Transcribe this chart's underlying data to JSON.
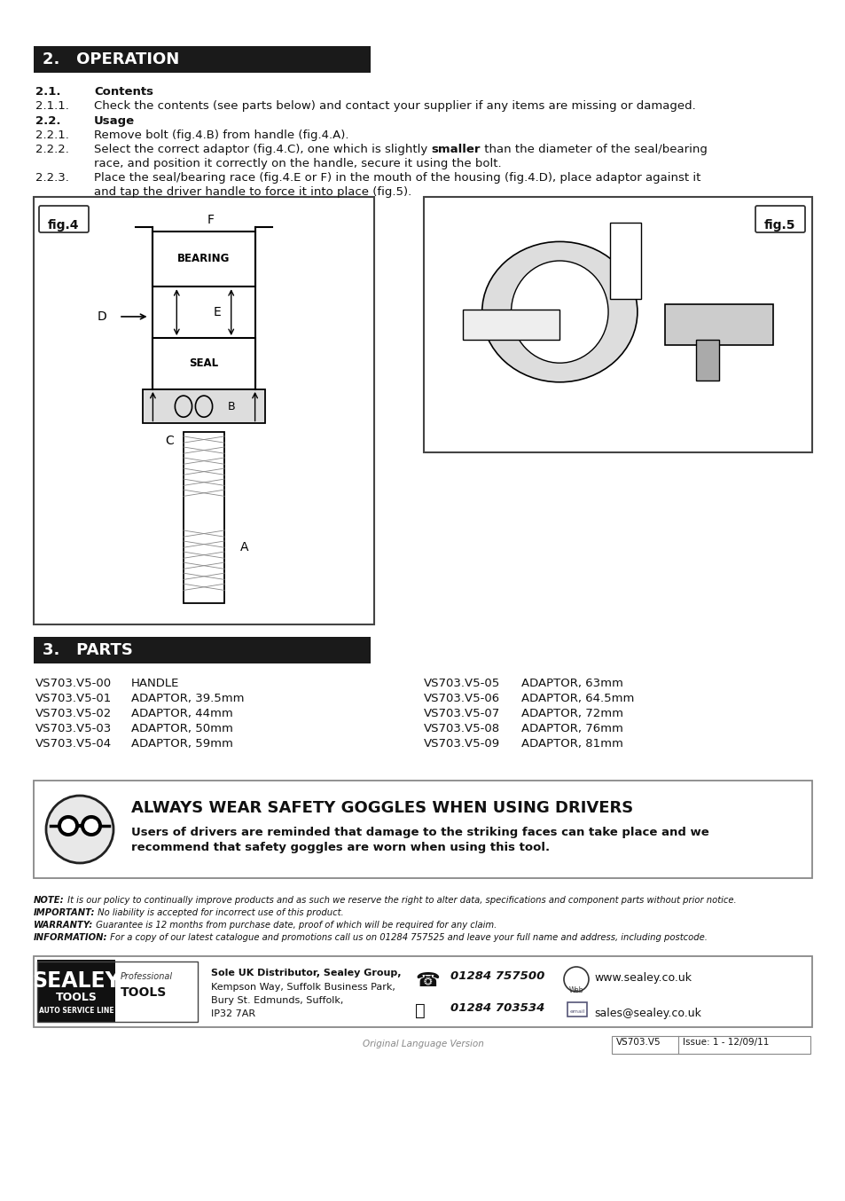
{
  "bg_color": "#ffffff",
  "header_color": "#1a1a1a",
  "header_text_color": "#ffffff",
  "section2_header": "2.   OPERATION",
  "section3_header": "3.   PARTS",
  "parts_left": [
    [
      "VS703.V5-00",
      "HANDLE"
    ],
    [
      "VS703.V5-01",
      "ADAPTOR, 39.5mm"
    ],
    [
      "VS703.V5-02",
      "ADAPTOR, 44mm"
    ],
    [
      "VS703.V5-03",
      "ADAPTOR, 50mm"
    ],
    [
      "VS703.V5-04",
      "ADAPTOR, 59mm"
    ]
  ],
  "parts_right": [
    [
      "VS703.V5-05",
      "ADAPTOR, 63mm"
    ],
    [
      "VS703.V5-06",
      "ADAPTOR, 64.5mm"
    ],
    [
      "VS703.V5-07",
      "ADAPTOR, 72mm"
    ],
    [
      "VS703.V5-08",
      "ADAPTOR, 76mm"
    ],
    [
      "VS703.V5-09",
      "ADAPTOR, 81mm"
    ]
  ],
  "safety_title": "ALWAYS WEAR SAFETY GOGGLES WHEN USING DRIVERS",
  "safety_line1": "Users of drivers are reminded that damage to the striking faces can take place and we",
  "safety_line2": "recommend that safety goggles are worn when using this tool.",
  "note_lines": [
    [
      "NOTE:",
      " It is our policy to continually improve products and as such we reserve the right to alter data, specifications and component parts without prior notice."
    ],
    [
      "IMPORTANT:",
      " No liability is accepted for incorrect use of this product."
    ],
    [
      "WARRANTY:",
      " Guarantee is 12 months from purchase date, proof of which will be required for any claim."
    ],
    [
      "INFORMATION:",
      " For a copy of our latest catalogue and promotions call us on 01284 757525 and leave your full name and address, including postcode."
    ]
  ],
  "footer_address_bold": "Sole UK Distributor, Sealey Group,",
  "footer_address_rest": "Kempson Way, Suffolk Business Park,\nBury St. Edmunds, Suffolk,\nIP32 7AR",
  "footer_phone1": "01284 757500",
  "footer_phone2": "01284 703534",
  "footer_web": "www.sealey.co.uk",
  "footer_email": "sales@sealey.co.uk",
  "footer_version": "VS703.V5",
  "footer_issue": "Issue: 1 - 12/09/11",
  "footer_lang": "Original Language Version"
}
